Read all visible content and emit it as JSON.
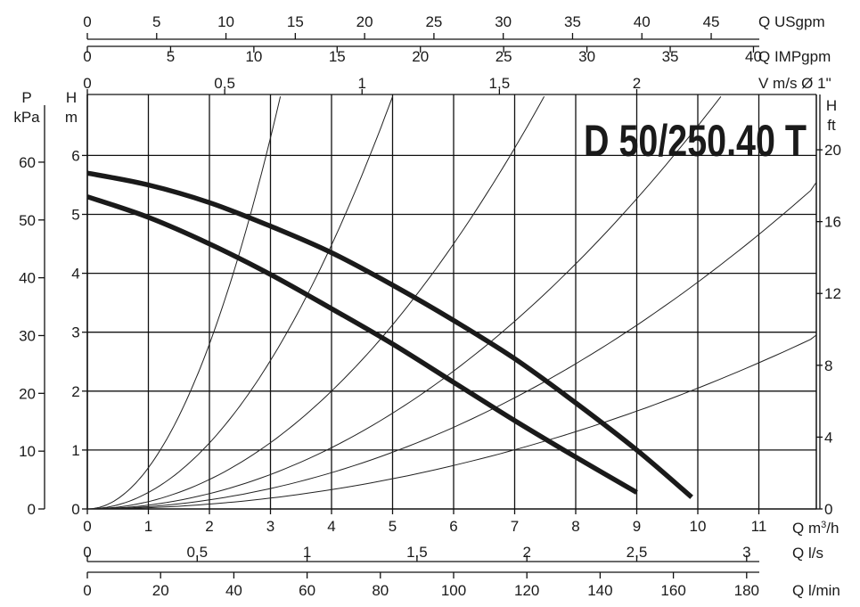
{
  "chart_data": {
    "type": "line",
    "title": "D 50/250.40 T",
    "plot": {
      "xlim": [
        0,
        12
      ],
      "ylim": [
        0,
        7
      ],
      "grid": true
    },
    "axes": {
      "bottom_main": {
        "label_prefix": "Q m",
        "label_sup": "3",
        "label_suffix": "/h",
        "ticks": [
          0,
          1,
          2,
          3,
          4,
          5,
          6,
          7,
          8,
          9,
          10,
          11
        ],
        "tick_labels": [
          "0",
          "1",
          "2",
          "3",
          "4",
          "5",
          "6",
          "7",
          "8",
          "9",
          "10",
          "11"
        ]
      },
      "bottom_ls": {
        "label": "Q l/s",
        "ticks": [
          0,
          0.5,
          1,
          1.5,
          2,
          2.5,
          3
        ],
        "tick_labels": [
          "0",
          "0,5",
          "1",
          "1,5",
          "2",
          "2,5",
          "3"
        ],
        "m3h_per_unit": 3.6
      },
      "bottom_lmin": {
        "label": "Q l/min",
        "ticks": [
          0,
          20,
          40,
          60,
          80,
          100,
          120,
          140,
          160,
          180
        ],
        "tick_labels": [
          "0",
          "20",
          "40",
          "60",
          "80",
          "100",
          "120",
          "140",
          "160",
          "180"
        ],
        "m3h_per_unit": 0.06
      },
      "top_usgpm": {
        "label": "Q USgpm",
        "ticks": [
          0,
          5,
          10,
          15,
          20,
          25,
          30,
          35,
          40,
          45
        ],
        "tick_labels": [
          "0",
          "5",
          "10",
          "15",
          "20",
          "25",
          "30",
          "35",
          "40",
          "45"
        ],
        "m3h_per_unit": 0.2271
      },
      "top_impgpm": {
        "label": "Q IMPgpm",
        "ticks": [
          0,
          5,
          10,
          15,
          20,
          25,
          30,
          35,
          40
        ],
        "tick_labels": [
          "0",
          "5",
          "10",
          "15",
          "20",
          "25",
          "30",
          "35",
          "40"
        ],
        "m3h_per_unit": 0.2728
      },
      "top_velocity": {
        "label": "V m/s Ø 1\"",
        "ticks": [
          0,
          0.5,
          1,
          1.5,
          2
        ],
        "tick_labels": [
          "0",
          "0,5",
          "1",
          "1,5",
          "2"
        ],
        "m3h_per_unit": 4.5
      },
      "left_kpa": {
        "label_top": "P",
        "label_bottom": "kPa",
        "ticks": [
          0,
          10,
          20,
          30,
          40,
          50,
          60
        ],
        "tick_labels": [
          "0",
          "10",
          "20",
          "30",
          "40",
          "50",
          "60"
        ],
        "m_per_unit": 0.0981
      },
      "left_m": {
        "label_top": "H",
        "label_bottom": "m",
        "ticks": [
          0,
          1,
          2,
          3,
          4,
          5,
          6
        ],
        "tick_labels": [
          "0",
          "1",
          "2",
          "3",
          "4",
          "5",
          "6"
        ]
      },
      "right_ft": {
        "label_top": "H",
        "label_bottom": "ft",
        "ticks": [
          0,
          4,
          8,
          12,
          16,
          20
        ],
        "tick_labels": [
          "0",
          "4",
          "8",
          "12",
          "16",
          "20"
        ],
        "m_per_unit": 0.3048
      }
    },
    "series": [
      {
        "style": "thick",
        "x": [
          0,
          1,
          2,
          3,
          4,
          5,
          6,
          7,
          8,
          9,
          9.9
        ],
        "y": [
          5.7,
          5.5,
          5.2,
          4.8,
          4.35,
          3.8,
          3.2,
          2.55,
          1.8,
          1.0,
          0.2
        ]
      },
      {
        "style": "thick",
        "x": [
          0,
          1,
          2,
          3,
          4,
          5,
          6,
          7,
          8,
          9.0
        ],
        "y": [
          5.3,
          4.95,
          4.5,
          3.98,
          3.4,
          2.8,
          2.15,
          1.5,
          0.88,
          0.28
        ]
      }
    ],
    "system_curves": {
      "style": "thin",
      "k": [
        0.7,
        0.28,
        0.125,
        0.065,
        0.0385,
        0.0205
      ]
    }
  }
}
